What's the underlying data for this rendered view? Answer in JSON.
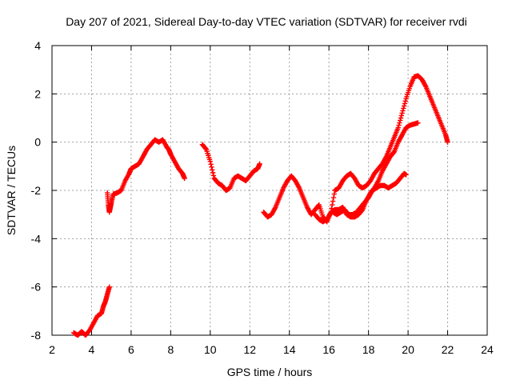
{
  "chart_data": {
    "type": "scatter",
    "title": "Day 207 of 2021, Sidereal Day-to-day VTEC variation (SDTVAR) for receiver rvdi",
    "xlabel": "GPS time / hours",
    "ylabel": "SDTVAR / TECUs",
    "xlim": [
      2,
      24
    ],
    "ylim": [
      -8,
      4
    ],
    "xticks": [
      "2",
      "4",
      "6",
      "8",
      "10",
      "12",
      "14",
      "16",
      "18",
      "20",
      "22",
      "24"
    ],
    "yticks": [
      "4",
      "2",
      "0",
      "-2",
      "-4",
      "-6",
      "-8"
    ],
    "grid": true,
    "marker": "plus",
    "color": "#ff0000",
    "series": [
      {
        "name": "arc-1",
        "x": [
          3.1,
          3.3,
          3.5,
          3.7,
          3.9,
          4.1,
          4.3,
          4.5,
          4.6,
          4.7,
          4.8,
          4.9
        ],
        "y": [
          -7.9,
          -8.0,
          -7.85,
          -8.0,
          -7.8,
          -7.5,
          -7.2,
          -7.1,
          -6.8,
          -6.6,
          -6.3,
          -6.0
        ]
      },
      {
        "name": "arc-2",
        "x": [
          4.8,
          4.85,
          4.9,
          4.95,
          5.0,
          5.1,
          5.3,
          5.5,
          5.7,
          5.9,
          6.0,
          6.2,
          6.4,
          6.6,
          6.8,
          7.0,
          7.2,
          7.4,
          7.6,
          7.8,
          7.9,
          8.0,
          8.2,
          8.4,
          8.6,
          8.7
        ],
        "y": [
          -2.1,
          -2.6,
          -2.9,
          -2.7,
          -2.5,
          -2.15,
          -2.1,
          -2.0,
          -1.6,
          -1.3,
          -1.1,
          -1.0,
          -0.9,
          -0.6,
          -0.3,
          -0.1,
          0.1,
          0.0,
          0.1,
          -0.2,
          -0.3,
          -0.5,
          -0.8,
          -1.1,
          -1.3,
          -1.5
        ]
      },
      {
        "name": "arc-3",
        "x": [
          9.6,
          9.8,
          10.0,
          10.2,
          10.4,
          10.6,
          10.8,
          11.0,
          11.2,
          11.4,
          11.6,
          11.8,
          12.0,
          12.2,
          12.4,
          12.5
        ],
        "y": [
          -0.1,
          -0.3,
          -0.8,
          -1.5,
          -1.7,
          -1.8,
          -2.0,
          -1.9,
          -1.5,
          -1.4,
          -1.5,
          -1.6,
          -1.4,
          -1.2,
          -1.1,
          -0.9
        ]
      },
      {
        "name": "arc-4",
        "x": [
          12.7,
          12.9,
          13.1,
          13.3,
          13.5,
          13.7,
          13.9,
          14.1,
          14.3,
          14.5,
          14.7,
          14.9,
          15.1,
          15.3,
          15.5,
          15.7,
          15.9,
          16.1,
          16.3,
          16.5,
          16.7,
          16.9,
          17.1,
          17.3,
          17.5,
          17.7,
          17.9,
          18.1,
          18.3,
          18.5,
          18.7,
          18.9,
          19.1,
          19.3,
          19.5,
          19.7,
          19.9,
          20.1,
          20.3,
          20.5,
          20.7,
          20.9,
          21.1,
          21.3,
          21.5,
          21.7,
          21.9,
          22.0
        ],
        "y": [
          -2.9,
          -3.1,
          -3.0,
          -2.7,
          -2.3,
          -1.9,
          -1.6,
          -1.4,
          -1.6,
          -1.9,
          -2.3,
          -2.7,
          -3.0,
          -2.8,
          -2.6,
          -3.1,
          -3.3,
          -2.9,
          -2.0,
          -1.9,
          -1.6,
          -1.4,
          -1.3,
          -1.5,
          -1.8,
          -1.9,
          -1.8,
          -1.6,
          -1.3,
          -1.1,
          -0.9,
          -0.6,
          -0.2,
          0.2,
          0.6,
          1.2,
          1.8,
          2.3,
          2.7,
          2.75,
          2.6,
          2.3,
          1.9,
          1.5,
          1.1,
          0.7,
          0.3,
          0.0
        ]
      },
      {
        "name": "arc-5",
        "x": [
          15.3,
          15.5,
          15.7,
          15.9,
          16.1,
          16.3,
          16.5,
          16.7,
          16.9,
          17.1,
          17.3,
          17.5,
          17.7,
          17.9,
          18.1,
          18.3,
          18.5,
          18.7,
          18.9,
          19.1,
          19.3,
          19.5,
          19.7,
          19.9,
          20.1,
          20.3,
          20.5
        ],
        "y": [
          -3.0,
          -3.2,
          -3.3,
          -3.2,
          -2.9,
          -2.8,
          -2.8,
          -2.7,
          -3.0,
          -3.1,
          -3.1,
          -3.0,
          -2.8,
          -2.4,
          -2.1,
          -1.9,
          -1.6,
          -1.2,
          -0.9,
          -0.6,
          -0.4,
          0.0,
          0.3,
          0.6,
          0.7,
          0.75,
          0.8
        ]
      },
      {
        "name": "arc-6",
        "x": [
          16.2,
          16.4,
          16.6,
          16.8,
          17.0,
          17.2,
          17.4,
          17.6,
          17.8,
          18.0,
          18.2,
          18.4,
          18.6,
          18.8,
          19.0,
          19.2,
          19.4,
          19.6,
          19.8,
          19.9
        ],
        "y": [
          -2.9,
          -3.0,
          -2.9,
          -2.8,
          -3.0,
          -3.0,
          -2.9,
          -2.7,
          -2.5,
          -2.3,
          -2.0,
          -1.9,
          -1.8,
          -1.8,
          -1.9,
          -1.8,
          -1.7,
          -1.5,
          -1.3,
          -1.35
        ]
      }
    ]
  }
}
